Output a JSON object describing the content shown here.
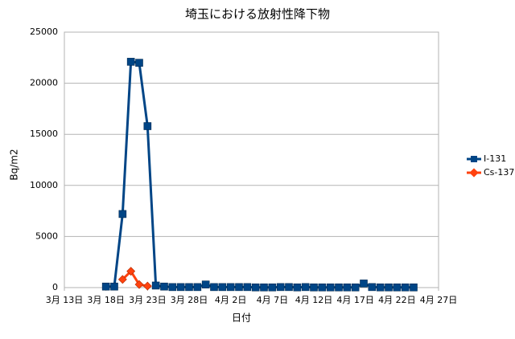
{
  "chart_data": {
    "type": "line",
    "title": "埼玉における放射性降下物",
    "x_label": "日付",
    "y_label": "Bq/m2",
    "x": [
      "3月 18日",
      "3月 19日",
      "3月 20日",
      "3月 21日",
      "3月 22日",
      "3月 23日",
      "3月 24日",
      "3月 25日",
      "3月 26日",
      "3月 27日",
      "3月 28日",
      "3月 29日",
      "3月 30日",
      "3月 31日",
      "4月 1日",
      "4月 2日",
      "4月 3日",
      "4月 4日",
      "4月 5日",
      "4月 6日",
      "4月 7日",
      "4月 8日",
      "4月 9日",
      "4月 10日",
      "4月 11日",
      "4月 12日",
      "4月 13日",
      "4月 14日",
      "4月 15日",
      "4月 16日",
      "4月 17日",
      "4月 18日",
      "4月 19日",
      "4月 20日",
      "4月 21日",
      "4月 22日",
      "4月 23日",
      "4月 24日"
    ],
    "series": [
      {
        "name": "I-131",
        "color": "#004586",
        "marker": "square",
        "values": [
          100,
          100,
          7200,
          22100,
          22000,
          15800,
          200,
          100,
          50,
          50,
          50,
          50,
          300,
          50,
          50,
          50,
          50,
          50,
          20,
          20,
          20,
          50,
          50,
          20,
          50,
          20,
          20,
          20,
          20,
          20,
          20,
          400,
          50,
          20,
          20,
          20,
          20,
          20
        ]
      },
      {
        "name": "Cs-137",
        "color": "#ff420e",
        "marker": "diamond",
        "values": [
          null,
          null,
          800,
          1600,
          300,
          150,
          null,
          null,
          null,
          null,
          null,
          null,
          null,
          null,
          null,
          null,
          null,
          null,
          null,
          null,
          null,
          null,
          null,
          null,
          null,
          null,
          null,
          null,
          null,
          null,
          null,
          null,
          null,
          null,
          null,
          null,
          null,
          null
        ]
      }
    ],
    "xlim": [
      "3月 13日",
      "4月 27日"
    ],
    "xticks": [
      "3月 13日",
      "3月 18日",
      "3月 23日",
      "3月 28日",
      "4月 2日",
      "4月 7日",
      "4月 12日",
      "4月 17日",
      "4月 22日",
      "4月 27日"
    ],
    "ylim": [
      0,
      25000
    ],
    "yticks": [
      0,
      5000,
      10000,
      15000,
      20000,
      25000
    ],
    "grid": true
  }
}
